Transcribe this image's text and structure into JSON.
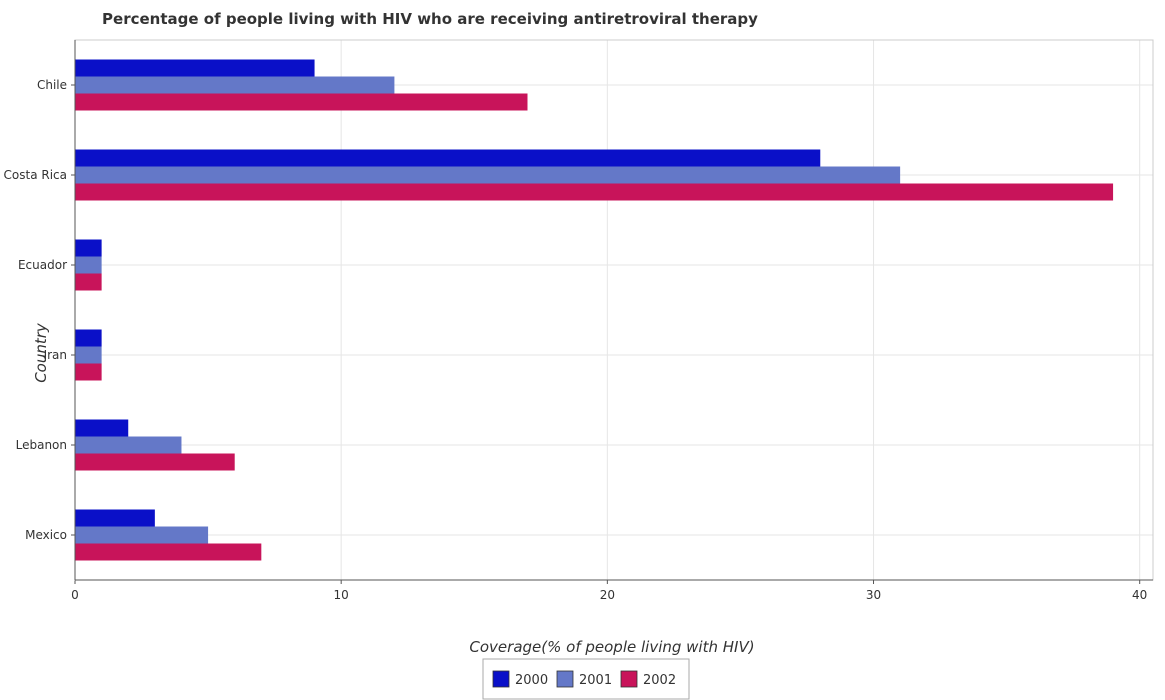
{
  "chart_data": {
    "type": "bar",
    "orientation": "horizontal",
    "title": "Percentage of people living with HIV who are receiving antiretroviral therapy",
    "xlabel": "Coverage(% of people living with HIV)",
    "ylabel": "Country",
    "categories": [
      "Chile",
      "Costa Rica",
      "Ecuador",
      "Iran",
      "Lebanon",
      "Mexico"
    ],
    "series": [
      {
        "name": "2000",
        "color": "#0a10c8",
        "values": [
          9,
          28,
          1,
          1,
          2,
          3
        ]
      },
      {
        "name": "2001",
        "color": "#6478c8",
        "values": [
          12,
          31,
          1,
          1,
          4,
          5
        ]
      },
      {
        "name": "2002",
        "color": "#c8145a",
        "values": [
          17,
          39,
          1,
          1,
          6,
          7
        ]
      }
    ],
    "xlim": [
      0,
      40.5
    ],
    "xticks": [
      "0",
      "10",
      "20",
      "30",
      "40"
    ],
    "grid": true,
    "legend_position": "bottom-center"
  }
}
